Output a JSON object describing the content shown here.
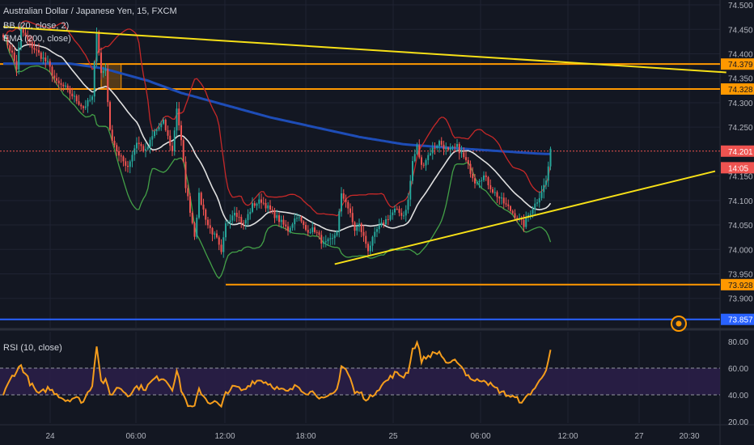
{
  "legend": {
    "symbol": "Australian Dollar / Japanese Yen, 15, FXCM",
    "bb": "BB (20, close, 2)",
    "ema": "EMA (200, close)",
    "rsi": "RSI (10, close)"
  },
  "colors": {
    "background": "#131722",
    "grid": "#1f2333",
    "candle_up": "#26a69a",
    "candle_down": "#ef5350",
    "bb_basis": "#e0e0e0",
    "bb_upper": "#c62828",
    "bb_lower": "#43a047",
    "ema": "#1e4db7",
    "trendline": "#f7e017",
    "level_orange": "#ff9800",
    "level_blue": "#2962ff",
    "rsi_line": "#f59d1c",
    "rsi_band": "#2a1e47"
  },
  "price_axis": {
    "ticks": [
      "74.500",
      "74.450",
      "74.400",
      "74.350",
      "74.300",
      "74.250",
      "74.150",
      "74.100",
      "74.050",
      "74.000",
      "73.950",
      "73.900"
    ],
    "tags": [
      {
        "label": "74.379",
        "value": 74.379,
        "color": "#ff9800",
        "text_color": "#131722"
      },
      {
        "label": "74.328",
        "value": 74.328,
        "color": "#ff9800",
        "text_color": "#131722"
      },
      {
        "label": "74.201",
        "value": 74.201,
        "color": "#ef5350",
        "text_color": "#ffffff"
      },
      {
        "label": "14:05",
        "value": 74.167,
        "color": "#ef5350",
        "text_color": "#ffffff"
      },
      {
        "label": "73.928",
        "value": 73.928,
        "color": "#ff9800",
        "text_color": "#131722"
      },
      {
        "label": "73.857",
        "value": 73.857,
        "color": "#2962ff",
        "text_color": "#ffffff"
      }
    ]
  },
  "rsi_axis": {
    "ticks": [
      "80.00",
      "60.00",
      "40.00",
      "20.00"
    ]
  },
  "time_axis": {
    "labels": [
      "24",
      "06:00",
      "12:00",
      "18:00",
      "25",
      "06:00",
      "12:00",
      "27",
      "20:30"
    ]
  },
  "chart_data": {
    "type": "candlestick",
    "symbol": "AUD/JPY",
    "interval": "15",
    "price_range": [
      73.84,
      74.51
    ],
    "rsi_range": [
      20,
      80
    ],
    "rsi_band": [
      40,
      60
    ],
    "horizontal_levels": [
      {
        "value": 74.379,
        "color": "orange"
      },
      {
        "value": 74.328,
        "color": "orange"
      },
      {
        "value": 73.928,
        "color": "orange"
      },
      {
        "value": 73.857,
        "color": "blue"
      }
    ],
    "current_price": 74.201,
    "trendlines": [
      {
        "name": "resistance",
        "from": {
          "t": 0,
          "price": 74.455
        },
        "to": {
          "t": 325,
          "price": 74.362
        }
      },
      {
        "name": "support",
        "from": {
          "t": 149,
          "price": 73.97
        },
        "to": {
          "t": 320,
          "price": 74.16
        }
      }
    ],
    "ohlc_anchors": [
      [
        0,
        74.44
      ],
      [
        4,
        74.4
      ],
      [
        6,
        74.37
      ],
      [
        8,
        74.45
      ],
      [
        12,
        74.42
      ],
      [
        16,
        74.4
      ],
      [
        20,
        74.38
      ],
      [
        24,
        74.34
      ],
      [
        28,
        74.33
      ],
      [
        32,
        74.31
      ],
      [
        36,
        74.29
      ],
      [
        38,
        74.3
      ],
      [
        40,
        74.31
      ],
      [
        42,
        74.45
      ],
      [
        44,
        74.36
      ],
      [
        46,
        74.37
      ],
      [
        48,
        74.24
      ],
      [
        52,
        74.19
      ],
      [
        56,
        74.17
      ],
      [
        60,
        74.22
      ],
      [
        64,
        74.2
      ],
      [
        68,
        74.24
      ],
      [
        72,
        74.26
      ],
      [
        76,
        74.2
      ],
      [
        78,
        74.29
      ],
      [
        80,
        74.22
      ],
      [
        82,
        74.13
      ],
      [
        84,
        74.08
      ],
      [
        86,
        74.03
      ],
      [
        88,
        74.11
      ],
      [
        92,
        74.05
      ],
      [
        96,
        74.02
      ],
      [
        98,
        73.99
      ],
      [
        100,
        74.05
      ],
      [
        104,
        74.08
      ],
      [
        108,
        74.05
      ],
      [
        112,
        74.09
      ],
      [
        116,
        74.1
      ],
      [
        120,
        74.08
      ],
      [
        124,
        74.06
      ],
      [
        128,
        74.04
      ],
      [
        132,
        74.07
      ],
      [
        136,
        74.04
      ],
      [
        140,
        74.04
      ],
      [
        144,
        74.01
      ],
      [
        148,
        74.02
      ],
      [
        150,
        74.04
      ],
      [
        152,
        74.11
      ],
      [
        154,
        74.1
      ],
      [
        156,
        74.07
      ],
      [
        158,
        74.04
      ],
      [
        160,
        74.05
      ],
      [
        164,
        74.0
      ],
      [
        168,
        74.04
      ],
      [
        172,
        74.06
      ],
      [
        176,
        74.08
      ],
      [
        180,
        74.07
      ],
      [
        182,
        74.1
      ],
      [
        184,
        74.18
      ],
      [
        186,
        74.21
      ],
      [
        188,
        74.17
      ],
      [
        192,
        74.2
      ],
      [
        196,
        74.22
      ],
      [
        200,
        74.2
      ],
      [
        204,
        74.21
      ],
      [
        208,
        74.18
      ],
      [
        212,
        74.14
      ],
      [
        216,
        74.15
      ],
      [
        220,
        74.12
      ],
      [
        224,
        74.1
      ],
      [
        228,
        74.08
      ],
      [
        232,
        74.06
      ],
      [
        234,
        74.05
      ],
      [
        236,
        74.07
      ],
      [
        240,
        74.1
      ],
      [
        244,
        74.14
      ],
      [
        246,
        74.2
      ]
    ],
    "ema200_anchors": [
      [
        0,
        74.38
      ],
      [
        30,
        74.38
      ],
      [
        45,
        74.37
      ],
      [
        65,
        74.345
      ],
      [
        80,
        74.32
      ],
      [
        100,
        74.295
      ],
      [
        120,
        74.27
      ],
      [
        140,
        74.25
      ],
      [
        160,
        74.23
      ],
      [
        180,
        74.215
      ],
      [
        200,
        74.208
      ],
      [
        220,
        74.202
      ],
      [
        240,
        74.196
      ],
      [
        246,
        74.195
      ]
    ],
    "rsi_anchors": [
      [
        0,
        40
      ],
      [
        4,
        54
      ],
      [
        8,
        62
      ],
      [
        12,
        49
      ],
      [
        16,
        40
      ],
      [
        20,
        45
      ],
      [
        24,
        41
      ],
      [
        28,
        36
      ],
      [
        32,
        38
      ],
      [
        36,
        35
      ],
      [
        40,
        48
      ],
      [
        42,
        78
      ],
      [
        44,
        50
      ],
      [
        46,
        50
      ],
      [
        48,
        40
      ],
      [
        52,
        46
      ],
      [
        56,
        40
      ],
      [
        60,
        46
      ],
      [
        64,
        45
      ],
      [
        68,
        52
      ],
      [
        72,
        53
      ],
      [
        76,
        45
      ],
      [
        78,
        58
      ],
      [
        80,
        44
      ],
      [
        82,
        36
      ],
      [
        84,
        30
      ],
      [
        86,
        31
      ],
      [
        88,
        44
      ],
      [
        92,
        35
      ],
      [
        96,
        34
      ],
      [
        98,
        30
      ],
      [
        100,
        42
      ],
      [
        104,
        46
      ],
      [
        108,
        43
      ],
      [
        112,
        50
      ],
      [
        116,
        51
      ],
      [
        120,
        48
      ],
      [
        124,
        44
      ],
      [
        128,
        42
      ],
      [
        132,
        47
      ],
      [
        136,
        42
      ],
      [
        140,
        42
      ],
      [
        144,
        36
      ],
      [
        148,
        40
      ],
      [
        150,
        44
      ],
      [
        152,
        62
      ],
      [
        154,
        59
      ],
      [
        156,
        52
      ],
      [
        158,
        41
      ],
      [
        160,
        42
      ],
      [
        164,
        36
      ],
      [
        168,
        44
      ],
      [
        172,
        50
      ],
      [
        176,
        56
      ],
      [
        180,
        54
      ],
      [
        182,
        58
      ],
      [
        184,
        74
      ],
      [
        186,
        79
      ],
      [
        188,
        66
      ],
      [
        192,
        70
      ],
      [
        196,
        72
      ],
      [
        200,
        62
      ],
      [
        204,
        66
      ],
      [
        208,
        56
      ],
      [
        212,
        50
      ],
      [
        216,
        52
      ],
      [
        220,
        46
      ],
      [
        224,
        42
      ],
      [
        228,
        39
      ],
      [
        232,
        36
      ],
      [
        234,
        35
      ],
      [
        236,
        40
      ],
      [
        240,
        47
      ],
      [
        244,
        60
      ],
      [
        246,
        72
      ]
    ]
  }
}
